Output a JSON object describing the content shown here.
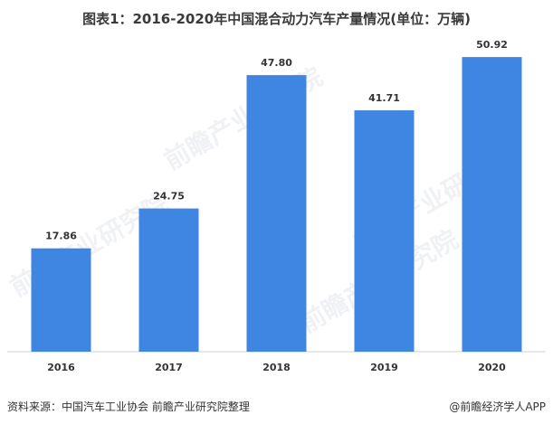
{
  "title": "图表1：2016-2020年中国混合动力汽车产量情况(单位：万辆)",
  "footer": {
    "source": "资料来源：中国汽车工业协会 前瞻产业研究院整理",
    "credit": "@前瞻经济学人APP"
  },
  "watermark": "前瞻产业研究院",
  "chart_data": {
    "type": "bar",
    "title": "图表1：2016-2020年中国混合动力汽车产量情况(单位：万辆)",
    "categories": [
      "2016",
      "2017",
      "2018",
      "2019",
      "2020"
    ],
    "values": [
      17.86,
      24.75,
      47.8,
      41.71,
      50.92
    ],
    "value_labels": [
      "17.86",
      "24.75",
      "47.80",
      "41.71",
      "50.92"
    ],
    "ylim": [
      0,
      55
    ],
    "bar_color": "#3f86e3",
    "grid": false,
    "legend": "none"
  }
}
